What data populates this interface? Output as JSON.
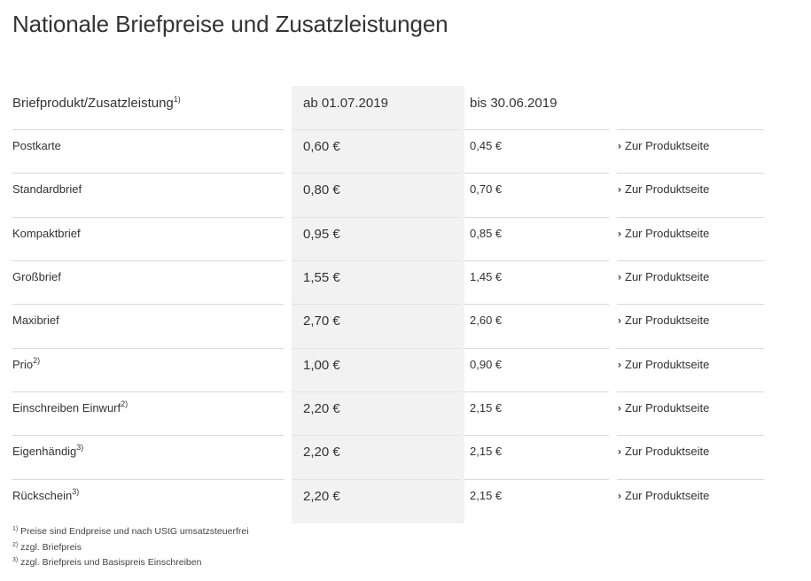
{
  "page": {
    "title": "Nationale Briefpreise und Zusatzleistungen"
  },
  "table": {
    "headers": {
      "product": "Briefprodukt/Zusatzleistung",
      "product_footnote": "1)",
      "new_price": "ab 01.07.2019",
      "old_price": "bis 30.06.2019"
    },
    "link_icon": "chevron-right-icon",
    "rows": [
      {
        "product": "Postkarte",
        "footnote": "",
        "new_price": "0,60 €",
        "old_price": "0,45 €",
        "link": "Zur Produktseite"
      },
      {
        "product": "Standardbrief",
        "footnote": "",
        "new_price": "0,80 €",
        "old_price": "0,70 €",
        "link": "Zur Produktseite"
      },
      {
        "product": "Kompaktbrief",
        "footnote": "",
        "new_price": "0,95 €",
        "old_price": "0,85 €",
        "link": "Zur Produktseite"
      },
      {
        "product": "Großbrief",
        "footnote": "",
        "new_price": "1,55 €",
        "old_price": "1,45 €",
        "link": "Zur Produktseite"
      },
      {
        "product": "Maxibrief",
        "footnote": "",
        "new_price": "2,70 €",
        "old_price": "2,60 €",
        "link": "Zur Produktseite"
      },
      {
        "product": "Prio",
        "footnote": "2)",
        "new_price": "1,00 €",
        "old_price": "0,90 €",
        "link": "Zur Produktseite"
      },
      {
        "product": "Einschreiben Einwurf",
        "footnote": "2)",
        "new_price": "2,20 €",
        "old_price": "2,15 €",
        "link": "Zur Produktseite"
      },
      {
        "product": "Eigenhändig",
        "footnote": "3)",
        "new_price": "2,20 €",
        "old_price": "2,15 €",
        "link": "Zur Produktseite"
      },
      {
        "product": "Rückschein",
        "footnote": "3)",
        "new_price": "2,20 €",
        "old_price": "2,15 €",
        "link": "Zur Produktseite"
      }
    ]
  },
  "footnotes": [
    {
      "mark": "1)",
      "text": "Preise sind Endpreise und nach UStG umsatzsteuerfrei"
    },
    {
      "mark": "2)",
      "text": "zzgl. Briefpreis"
    },
    {
      "mark": "3)",
      "text": "zzgl. Briefpreis und Basispreis Einschreiben"
    }
  ],
  "colors": {
    "highlight_column": "#f2f2f2",
    "divider": "#d9d9d9",
    "text": "#333333"
  }
}
